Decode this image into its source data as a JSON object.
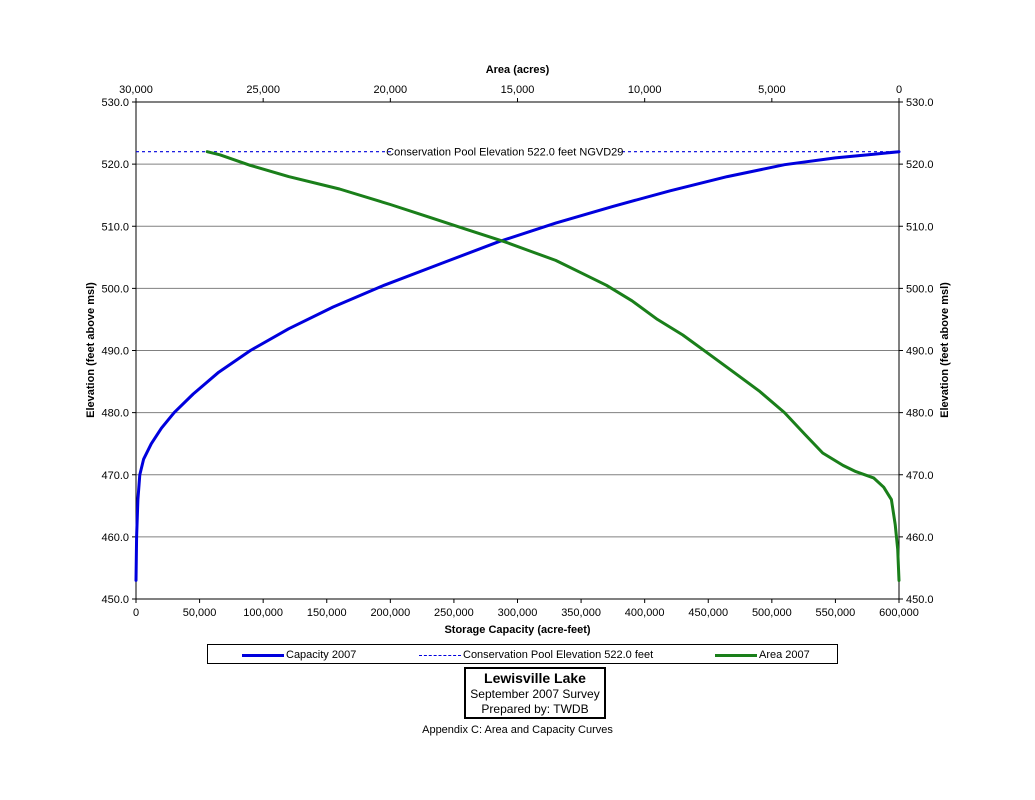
{
  "chart_data": {
    "type": "line",
    "title": "",
    "xlabel": "Storage Capacity (acre-feet)",
    "x2label": "Area (acres)",
    "ylabel": "Elevation (feet above msl)",
    "y2label": "Elevation (feet above msl)",
    "xlim": [
      0,
      600000
    ],
    "x2lim": [
      30000,
      0
    ],
    "ylim": [
      450,
      530
    ],
    "x_ticks": [
      "0",
      "50,000",
      "100,000",
      "150,000",
      "200,000",
      "250,000",
      "300,000",
      "350,000",
      "400,000",
      "450,000",
      "500,000",
      "550,000",
      "600,000"
    ],
    "x2_ticks": [
      "30,000",
      "25,000",
      "20,000",
      "15,000",
      "10,000",
      "5,000",
      "0"
    ],
    "y_ticks": [
      "450.0",
      "460.0",
      "470.0",
      "480.0",
      "490.0",
      "500.0",
      "510.0",
      "520.0",
      "530.0"
    ],
    "grid": "horizontal",
    "legend_position": "bottom",
    "series": [
      {
        "name": "Capacity 2007",
        "axis": "bottom",
        "color": "#0000dd",
        "style": "solid",
        "x": [
          0,
          500,
          1500,
          3000,
          6000,
          12000,
          20000,
          30000,
          45000,
          65000,
          90000,
          120000,
          155000,
          195000,
          240000,
          285000,
          330000,
          375000,
          420000,
          465000,
          510000,
          550000,
          580000,
          600000
        ],
        "y": [
          453,
          460,
          466,
          470,
          472.5,
          475,
          477.5,
          480,
          483,
          486.5,
          490,
          493.5,
          497,
          500.5,
          504,
          507.5,
          510.5,
          513.2,
          515.7,
          518,
          519.9,
          521,
          521.6,
          522
        ]
      },
      {
        "name": "Conservation Pool Elevation 522.0 feet",
        "axis": "bottom",
        "color": "#0000dd",
        "style": "dashed",
        "x": [
          0,
          600000
        ],
        "y": [
          522,
          522
        ]
      },
      {
        "name": "Area 2007",
        "axis": "top",
        "color": "#1a7f1a",
        "style": "solid",
        "x": [
          27200,
          26700,
          25500,
          24000,
          22000,
          20000,
          18500,
          17000,
          15500,
          14500,
          13500,
          12500,
          11500,
          10500,
          9500,
          8500,
          7500,
          6500,
          5500,
          4500,
          3700,
          3000,
          2200,
          1700,
          1000,
          600,
          300,
          150,
          50,
          0
        ],
        "y": [
          522,
          521.5,
          519.8,
          518,
          516,
          513.5,
          511.5,
          509.5,
          507.5,
          506,
          504.5,
          502.5,
          500.5,
          498,
          495,
          492.5,
          489.5,
          486.5,
          483.5,
          480,
          476.5,
          473.5,
          471.5,
          470.5,
          469.5,
          468,
          466,
          462,
          458,
          453
        ]
      }
    ],
    "annotations": [
      {
        "text": "Conservation Pool Elevation 522.0 feet NGVD29",
        "x": 290000,
        "y": 522
      }
    ]
  },
  "title_box": {
    "line1": "Lewisville Lake",
    "line2": "September 2007 Survey",
    "line3": "Prepared by: TWDB"
  },
  "footnote": "Appendix C: Area and Capacity Curves"
}
